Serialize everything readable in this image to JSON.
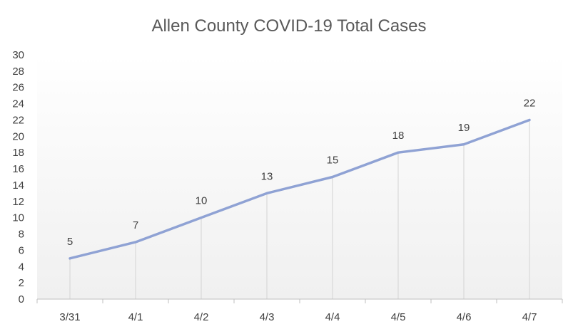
{
  "chart_data": {
    "type": "line",
    "title": "Allen County COVID-19 Total Cases",
    "xlabel": "",
    "ylabel": "",
    "categories": [
      "3/31",
      "4/1",
      "4/2",
      "4/3",
      "4/4",
      "4/5",
      "4/6",
      "4/7"
    ],
    "series": [
      {
        "values": [
          5,
          7,
          10,
          13,
          15,
          18,
          19,
          22
        ]
      }
    ],
    "ylim": [
      0,
      30
    ],
    "ytick_step": 2,
    "grid": false,
    "drop_lines": true,
    "data_labels": true,
    "legend": "none",
    "colors": {
      "line": "#8FA2D4",
      "drop_line": "#D9D9D9",
      "axis": "#BFBFBF",
      "background_top": "#FFFFFF",
      "background_bottom": "#F0F0F0"
    }
  }
}
